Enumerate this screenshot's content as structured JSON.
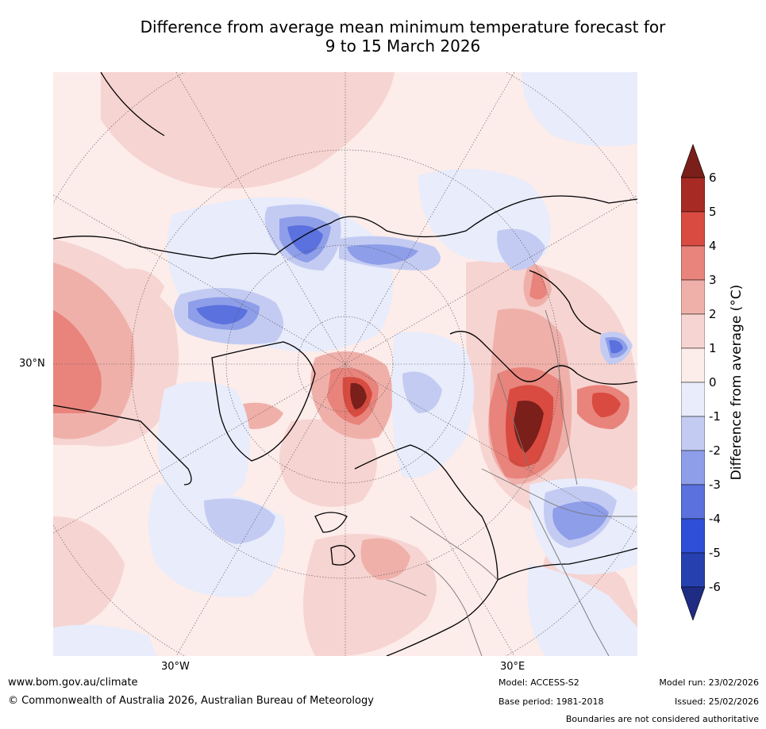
{
  "title_line1": "Difference from average mean minimum temperature forecast for",
  "title_line2": "9 to 15 March 2026",
  "map": {
    "lat_label": "30°N",
    "lon_labels": [
      "30°W",
      "30°E"
    ]
  },
  "colorbar": {
    "label": "Difference from average (°C)",
    "ticks": [
      "6",
      "5",
      "4",
      "3",
      "2",
      "1",
      "0",
      "-1",
      "-2",
      "-3",
      "-4",
      "-5",
      "-6"
    ],
    "colors": {
      "above_max": "#7a1f1a",
      "5_to_6": "#a82a24",
      "4_to_5": "#d94b40",
      "3_to_4": "#e8847c",
      "2_to_3": "#f0b0aa",
      "1_to_2": "#f6d4d1",
      "0_to_1": "#fcecea",
      "m1_to_0": "#e8ecfb",
      "m2_to_m1": "#c3cbf2",
      "m3_to_m2": "#8e9ee9",
      "m4_to_m3": "#5a71de",
      "m5_to_m4": "#2f4fd6",
      "m6_to_m5": "#2740b0",
      "below_min": "#1f2c83"
    }
  },
  "footer": {
    "website": "www.bom.gov.au/climate",
    "copyright": "© Commonwealth of Australia 2026, Australian Bureau of Meteorology",
    "model": "Model: ACCESS-S2",
    "base_period": "Base period: 1981-2018",
    "model_run": "Model run: 23/02/2026",
    "issued": "Issued: 25/02/2026",
    "disclaimer": "Boundaries are not considered authoritative"
  }
}
